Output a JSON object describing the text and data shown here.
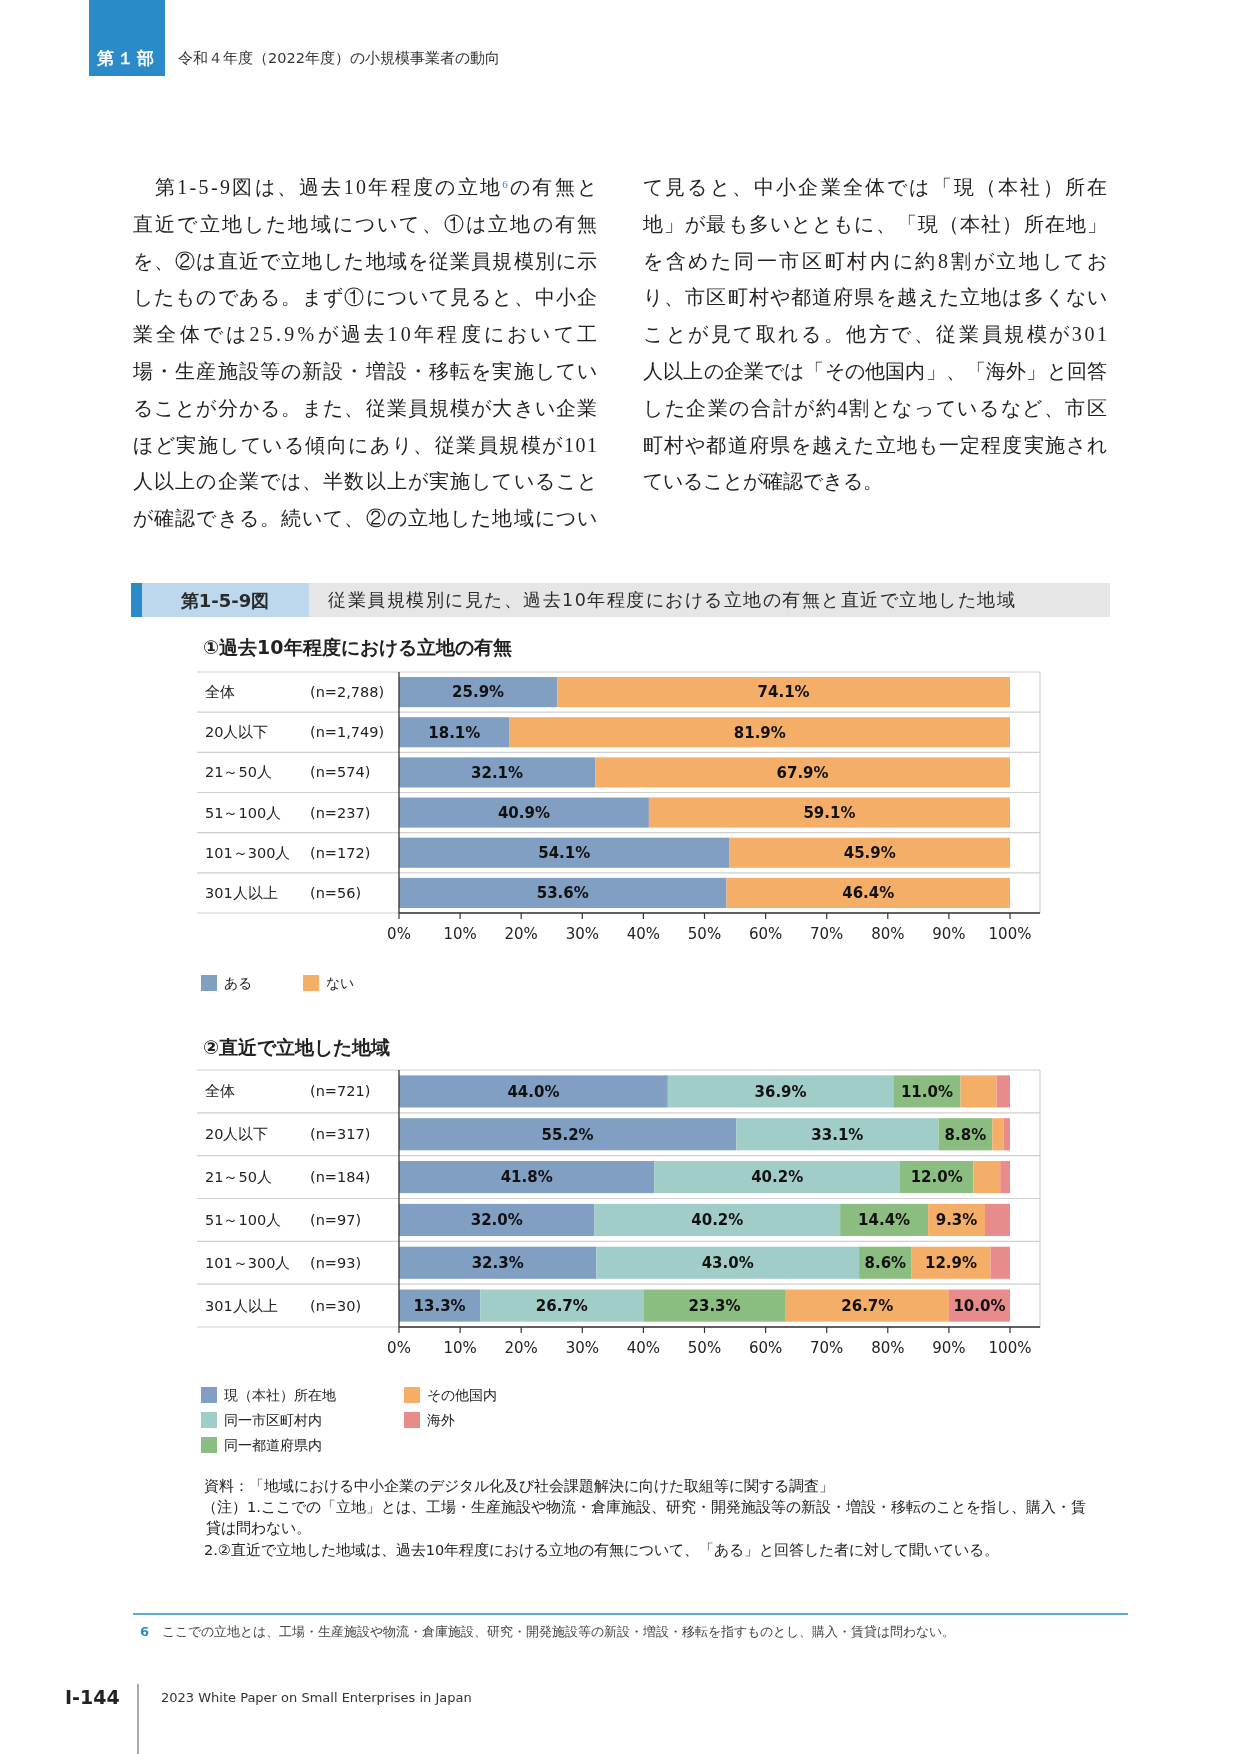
{
  "chart_data": [
    {
      "type": "bar",
      "orientation": "horizontal",
      "stacked": true,
      "title": "従業員規模別に見た、過去10年程度における立地の有無と直近で立地した地域",
      "subtitle": "①過去10年程度における立地の有無",
      "categories": [
        "全体 (n=2,788)",
        "20人以下 (n=1,749)",
        "21～50人 (n=574)",
        "51～100人 (n=237)",
        "101～300人 (n=172)",
        "301人以上 (n=56)"
      ],
      "series": [
        {
          "name": "ある",
          "color": "#819fc2",
          "values": [
            25.9,
            18.1,
            32.1,
            40.9,
            54.1,
            53.6
          ],
          "value_labels": [
            "25.9%",
            "18.1%",
            "32.1%",
            "40.9%",
            "54.1%",
            "53.6%"
          ]
        },
        {
          "name": "ない",
          "color": "#f5ae68",
          "values": [
            74.1,
            81.9,
            67.9,
            59.1,
            45.9,
            46.4
          ],
          "value_labels": [
            "74.1%",
            "81.9%",
            "67.9%",
            "59.1%",
            "45.9%",
            "46.4%"
          ]
        }
      ],
      "xlim": [
        0,
        100
      ],
      "xticks": [
        {
          "value": 0,
          "label": "0%"
        },
        {
          "value": 10,
          "label": "10%"
        },
        {
          "value": 20,
          "label": "20%"
        },
        {
          "value": 30,
          "label": "30%"
        },
        {
          "value": 40,
          "label": "40%"
        },
        {
          "value": 50,
          "label": "50%"
        },
        {
          "value": 60,
          "label": "60%"
        },
        {
          "value": 70,
          "label": "70%"
        },
        {
          "value": 80,
          "label": "80%"
        },
        {
          "value": 90,
          "label": "90%"
        },
        {
          "value": 100,
          "label": "100%"
        }
      ],
      "grid": "y",
      "legend": "bottom left",
      "annotations": [
        "第１部",
        "令和４年度（2022年度）の小規模事業者の動向",
        "第1-5-9図は、過去10年程度の立地$^{6}$の有無と直近で立地した地域について、①は立地の有無を、②は直近で立地した地域を従業員規模別に示したものである。まず①について見ると、中小企業全体では25.9%が過去10年程度において工場・生産施設等の新設・増設・移転を実施していることが分かる。また、従業員規模が大きい企業ほど実施している傾向にあり、従業員規模が101人以上の企業では、半数以上が実施していることが確認できる。続いて、②の立地した地域について見ると、中小企業全体では「現（本社）所在地」が最も多いとともに、「現（本社）所在地」を含めた同一市区町村内に約8割が立地しており、市区町村や都道府県を越えた立地は多くないことが見て取れる。他方で、従業員規模が301人以上の企業では「その他国内」、「海外」と回答した企業の合計が約4割となっているなど、市区町村や都道府県を越えた立地も一定程度実施されていることが確認できる。",
        "第1-5-9図"
      ]
    },
    {
      "type": "bar",
      "orientation": "horizontal",
      "stacked": true,
      "title": "②直近で立地した地域",
      "categories": [
        "全体 (n=721)",
        "20人以下 (n=317)",
        "21～50人 (n=184)",
        "51～100人 (n=97)",
        "101～300人 (n=93)",
        "301人以上 (n=30)"
      ],
      "series": [
        {
          "name": "現（本社）所在地",
          "color": "#819fc2",
          "values": [
            44.0,
            55.2,
            41.8,
            32.0,
            32.3,
            13.3
          ],
          "value_labels": [
            "44.0%",
            "55.2%",
            "41.8%",
            "32.0%",
            "32.3%",
            "13.3%"
          ]
        },
        {
          "name": "同一市区町村内",
          "color": "#a1cdc9",
          "values": [
            36.9,
            33.1,
            40.2,
            40.2,
            43.0,
            26.7
          ],
          "value_labels": [
            "36.9%",
            "33.1%",
            "40.2%",
            "40.2%",
            "43.0%",
            "26.7%"
          ]
        },
        {
          "name": "同一都道府県内",
          "color": "#8bbd80",
          "values": [
            11.0,
            8.8,
            12.0,
            14.4,
            8.6,
            23.3
          ],
          "value_labels": [
            "11.0%",
            "8.8%",
            "12.0%",
            "14.4%",
            "8.6%",
            "23.3%"
          ]
        },
        {
          "name": "その他国内",
          "color": "#f5ae68",
          "values": [
            5.9,
            1.9,
            4.4,
            9.3,
            12.9,
            26.7
          ],
          "value_labels": [
            null,
            null,
            null,
            "9.3%",
            "12.9%",
            "26.7%"
          ]
        },
        {
          "name": "海外",
          "color": "#e88b8b",
          "values": [
            2.2,
            1.0,
            1.6,
            4.1,
            3.2,
            10.0
          ],
          "value_labels": [
            null,
            null,
            null,
            null,
            null,
            "10.0%"
          ]
        }
      ],
      "xlim": [
        0,
        100
      ],
      "xticks": [
        {
          "value": 0,
          "label": "0%"
        },
        {
          "value": 10,
          "label": "10%"
        },
        {
          "value": 20,
          "label": "20%"
        },
        {
          "value": 30,
          "label": "30%"
        },
        {
          "value": 40,
          "label": "40%"
        },
        {
          "value": 50,
          "label": "50%"
        },
        {
          "value": 60,
          "label": "60%"
        },
        {
          "value": 70,
          "label": "70%"
        },
        {
          "value": 80,
          "label": "80%"
        },
        {
          "value": 90,
          "label": "90%"
        },
        {
          "value": 100,
          "label": "100%"
        }
      ],
      "grid": "y",
      "legend": "bottom left",
      "annotations": [
        "資料：「地域における中小企業のデジタル化及び社会課題解決に向けた取組等に関する調査」",
        "（注）1.ここでの「立地」とは、工場・生産施設や物流・倉庫施設、研究・開発施設等の新設・増設・移転のことを指し、購入・賃貸は問わない。",
        "2.②直近で立地した地域は、過去10年程度における立地の有無について、「ある」と回答した者に対して聞いている。",
        "6　ここでの立地とは、工場・生産施設や物流・倉庫施設、研究・開発施設等の新設・増設・移転を指すものとし、購入・賃貸は問わない。",
        "I-144",
        "2023 White Paper on Small Enterprises in Japan"
      ]
    }
  ]
}
